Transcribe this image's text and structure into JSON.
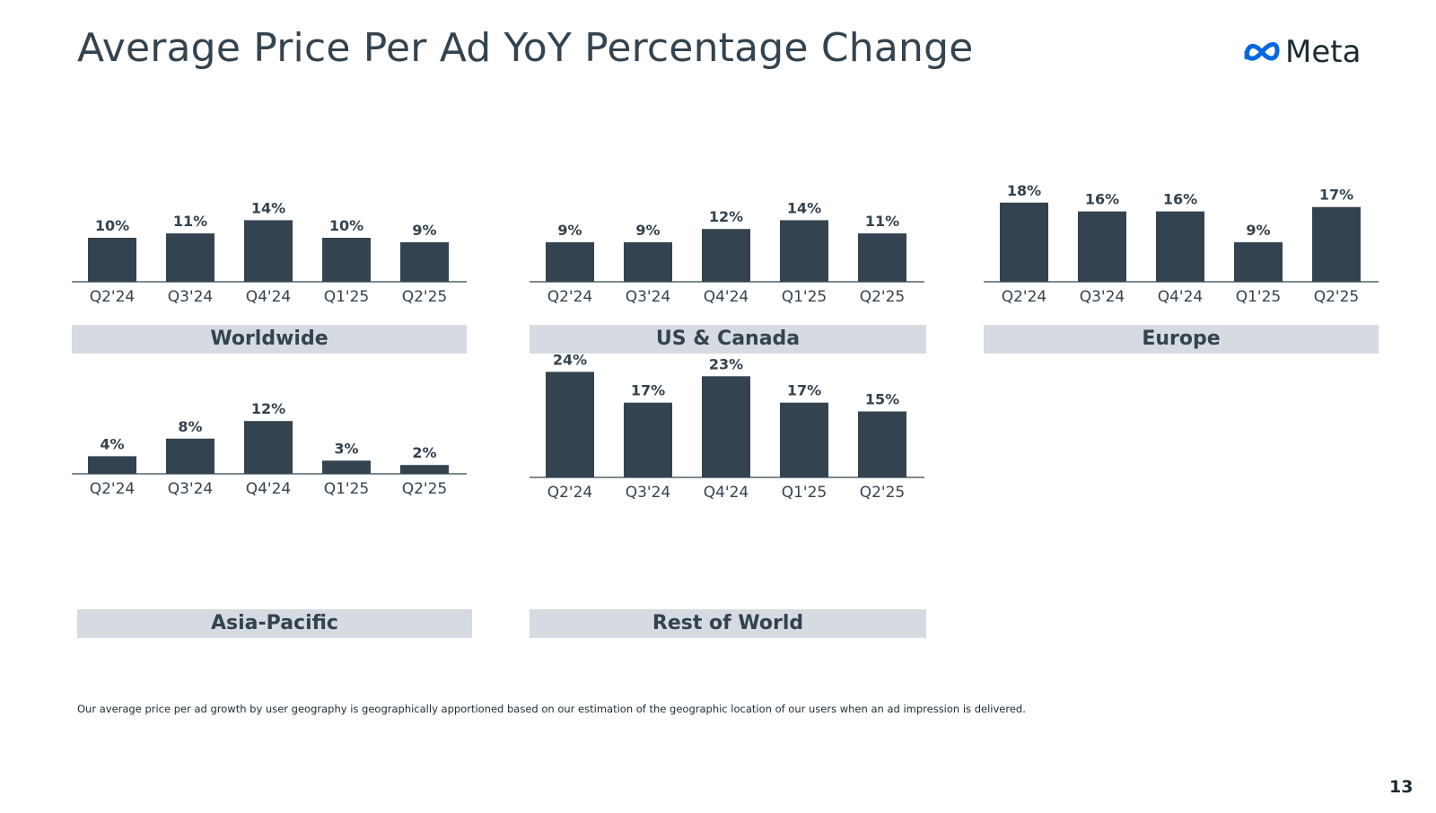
{
  "slide": {
    "title": "Average Price Per Ad YoY Percentage Change",
    "logo_text": "Meta",
    "logo_icon": "meta-infinity-icon",
    "footnote": "Our average price per ad growth by user geography is geographically apportioned based on our estimation of the geographic location of our users when an ad impression is delivered.",
    "page_number": "13"
  },
  "colors": {
    "bar": "#33434f",
    "axis": "#33434f",
    "label_band": "#d5dbe1",
    "text": "#33434f",
    "logo_blue": "#0668e1"
  },
  "chart_data": [
    {
      "type": "bar",
      "title": "Worldwide",
      "categories": [
        "Q2'24",
        "Q3'24",
        "Q4'24",
        "Q1'25",
        "Q2'25"
      ],
      "values": [
        10,
        11,
        14,
        10,
        9
      ],
      "value_labels": [
        "10%",
        "11%",
        "14%",
        "10%",
        "9%"
      ],
      "unit": "%"
    },
    {
      "type": "bar",
      "title": "US & Canada",
      "categories": [
        "Q2'24",
        "Q3'24",
        "Q4'24",
        "Q1'25",
        "Q2'25"
      ],
      "values": [
        9,
        9,
        12,
        14,
        11
      ],
      "value_labels": [
        "9%",
        "9%",
        "12%",
        "14%",
        "11%"
      ],
      "unit": "%"
    },
    {
      "type": "bar",
      "title": "Europe",
      "categories": [
        "Q2'24",
        "Q3'24",
        "Q4'24",
        "Q1'25",
        "Q2'25"
      ],
      "values": [
        18,
        16,
        16,
        9,
        17
      ],
      "value_labels": [
        "18%",
        "16%",
        "16%",
        "9%",
        "17%"
      ],
      "unit": "%"
    },
    {
      "type": "bar",
      "title": "Asia-Pacific",
      "categories": [
        "Q2'24",
        "Q3'24",
        "Q4'24",
        "Q1'25",
        "Q2'25"
      ],
      "values": [
        4,
        8,
        12,
        3,
        2
      ],
      "value_labels": [
        "4%",
        "8%",
        "12%",
        "3%",
        "2%"
      ],
      "unit": "%"
    },
    {
      "type": "bar",
      "title": "Rest of World",
      "categories": [
        "Q2'24",
        "Q3'24",
        "Q4'24",
        "Q1'25",
        "Q2'25"
      ],
      "values": [
        24,
        17,
        23,
        17,
        15
      ],
      "value_labels": [
        "24%",
        "17%",
        "23%",
        "17%",
        "15%"
      ],
      "unit": "%"
    }
  ]
}
